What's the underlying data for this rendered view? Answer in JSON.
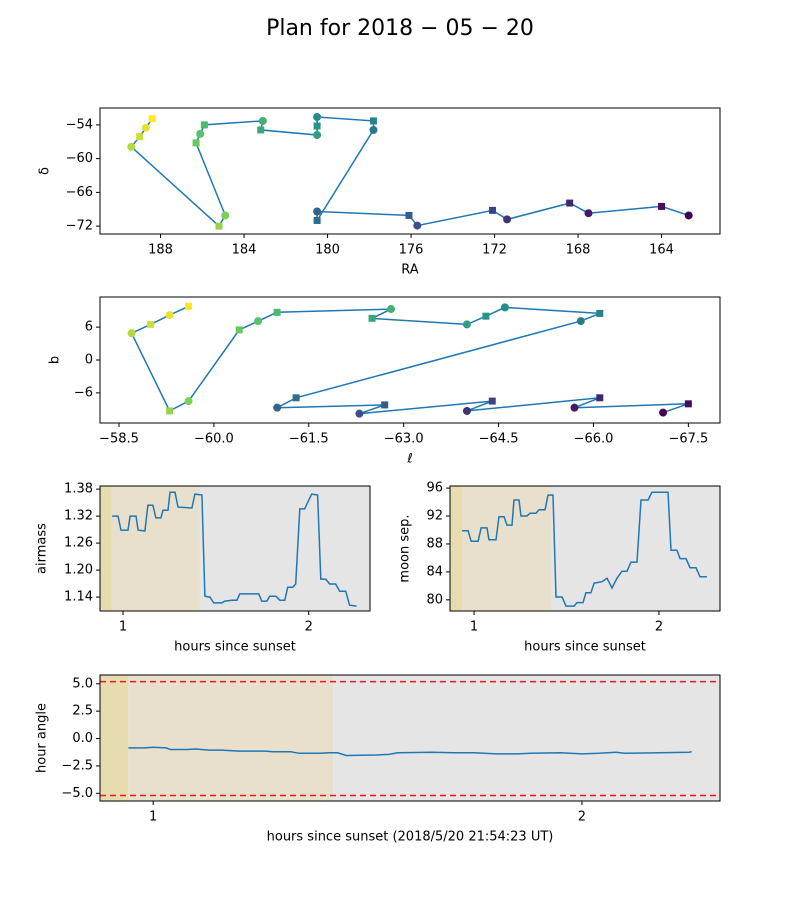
{
  "title": "Plan for 2018 − 05 − 20",
  "chart_data": [
    {
      "type": "scatter",
      "connect": true,
      "colormap": "viridis",
      "line_color": "#1f77b4",
      "xlabel": "RA",
      "ylabel": "δ",
      "x": [
        162.7,
        164.0,
        167.5,
        168.4,
        171.4,
        172.1,
        175.7,
        176.1,
        180.5,
        180.5,
        177.8,
        177.8,
        180.5,
        180.5,
        180.5,
        183.2,
        183.1,
        185.9,
        186.1,
        186.3,
        184.9,
        185.2,
        189.4,
        189.0,
        188.7,
        188.4
      ],
      "values": [
        -70.1,
        -68.5,
        -69.7,
        -67.9,
        -70.8,
        -69.2,
        -71.9,
        -70.1,
        -69.4,
        -71.0,
        -54.9,
        -53.3,
        -52.6,
        -54.2,
        -55.8,
        -54.9,
        -53.3,
        -54.0,
        -55.6,
        -57.2,
        -70.1,
        -72.0,
        -57.9,
        -56.1,
        -54.5,
        -52.9
      ],
      "xlim": [
        190.9,
        161.2
      ],
      "xticks": [
        188,
        184,
        180,
        176,
        172,
        168,
        164
      ],
      "ylim": [
        -73.4,
        -51
      ],
      "yticks": [
        {
          "value": -54,
          "label": "−54"
        },
        {
          "value": -60,
          "label": "−60"
        },
        {
          "value": -66,
          "label": "−66"
        },
        {
          "value": -72,
          "label": "−72"
        }
      ]
    },
    {
      "type": "scatter",
      "connect": true,
      "colormap": "viridis",
      "line_color": "#1f77b4",
      "xlabel": "ℓ",
      "ylabel": "b",
      "x": [
        -67.1,
        -67.5,
        -65.7,
        -66.1,
        -64.0,
        -64.4,
        -62.3,
        -62.7,
        -61.0,
        -61.3,
        -65.8,
        -66.1,
        -64.6,
        -64.3,
        -64.0,
        -62.5,
        -62.8,
        -61.0,
        -60.7,
        -60.4,
        -59.6,
        -59.3,
        -58.7,
        -59.0,
        -59.3,
        -59.6
      ],
      "values": [
        -9.6,
        -8.0,
        -8.7,
        -6.9,
        -9.3,
        -7.5,
        -9.8,
        -8.2,
        -8.7,
        -6.9,
        7.1,
        8.5,
        9.6,
        8.0,
        6.5,
        7.6,
        9.3,
        8.7,
        7.1,
        5.5,
        -7.5,
        -9.3,
        4.9,
        6.5,
        8.2,
        9.8
      ],
      "xlim": [
        -58.2,
        -68.0
      ],
      "xticks": [
        {
          "value": -58.5,
          "label": "−58.5"
        },
        {
          "value": -60,
          "label": "−60.0"
        },
        {
          "value": -61.5,
          "label": "−61.5"
        },
        {
          "value": -63,
          "label": "−63.0"
        },
        {
          "value": -64.5,
          "label": "−64.5"
        },
        {
          "value": -66,
          "label": "−66.0"
        },
        {
          "value": -67.5,
          "label": "−67.5"
        }
      ],
      "ylim": [
        -11.5,
        11.5
      ],
      "yticks": [
        6,
        0,
        {
          "value": -6,
          "label": "−6"
        }
      ]
    },
    {
      "type": "line",
      "color": "#1f77b4",
      "xlabel": "hours since sunset",
      "ylabel": "airmass",
      "spans": [
        {
          "x": [
            0.876,
            0.94
          ],
          "color": "#e6dcb0"
        },
        {
          "x": [
            0.94,
            1.414
          ],
          "color": "#e8e0cc"
        },
        {
          "x": [
            1.414,
            2.33
          ],
          "color": "#e5e5e5"
        }
      ],
      "x": [
        0.941,
        0.973,
        0.989,
        1.027,
        1.038,
        1.07,
        1.081,
        1.118,
        1.134,
        1.161,
        1.177,
        1.204,
        1.215,
        1.242,
        1.253,
        1.28,
        1.296,
        1.371,
        1.387,
        1.425,
        1.441,
        1.468,
        1.489,
        1.532,
        1.548,
        1.586,
        1.613,
        1.629,
        1.731,
        1.747,
        1.774,
        1.79,
        1.823,
        1.844,
        1.871,
        1.887,
        1.914,
        1.93,
        1.952,
        1.978,
        2.016,
        2.048,
        2.065,
        2.091,
        2.113,
        2.145,
        2.167,
        2.199,
        2.22,
        2.258
      ],
      "values": [
        1.32,
        1.32,
        1.289,
        1.289,
        1.32,
        1.32,
        1.289,
        1.287,
        1.344,
        1.344,
        1.316,
        1.316,
        1.333,
        1.333,
        1.373,
        1.373,
        1.34,
        1.338,
        1.369,
        1.367,
        1.142,
        1.14,
        1.127,
        1.127,
        1.131,
        1.133,
        1.133,
        1.147,
        1.147,
        1.131,
        1.131,
        1.142,
        1.142,
        1.133,
        1.133,
        1.162,
        1.162,
        1.169,
        1.336,
        1.336,
        1.369,
        1.367,
        1.18,
        1.18,
        1.169,
        1.169,
        1.153,
        1.153,
        1.122,
        1.12
      ],
      "xlim": [
        0.876,
        2.33
      ],
      "xticks": [
        1,
        2
      ],
      "ylim": [
        1.109,
        1.387
      ],
      "yticks": [
        1.38,
        1.32,
        1.26,
        {
          "value": 1.2,
          "label": "1.20"
        },
        1.14
      ]
    },
    {
      "type": "line",
      "color": "#1f77b4",
      "xlabel": "hours since sunset",
      "ylabel": "moon sep.",
      "spans": [
        {
          "x": [
            0.87,
            0.935
          ],
          "color": "#e6dcb0"
        },
        {
          "x": [
            0.935,
            1.416
          ],
          "color": "#e8e0cc"
        },
        {
          "x": [
            1.416,
            2.33
          ],
          "color": "#e5e5e5"
        }
      ],
      "x": [
        0.935,
        0.968,
        0.984,
        1.022,
        1.038,
        1.07,
        1.081,
        1.119,
        1.135,
        1.162,
        1.178,
        1.205,
        1.216,
        1.243,
        1.254,
        1.286,
        1.303,
        1.335,
        1.351,
        1.384,
        1.4,
        1.427,
        1.443,
        1.476,
        1.497,
        1.541,
        1.557,
        1.589,
        1.605,
        1.632,
        1.649,
        1.692,
        1.719,
        1.746,
        1.773,
        1.8,
        1.827,
        1.849,
        1.881,
        1.903,
        1.941,
        1.962,
        2.049,
        2.065,
        2.097,
        2.114,
        2.146,
        2.168,
        2.2,
        2.222,
        2.259
      ],
      "values": [
        89.9,
        89.9,
        88.4,
        88.4,
        90.3,
        90.3,
        88.6,
        88.6,
        91.9,
        91.9,
        90.7,
        90.7,
        94.3,
        94.3,
        92.0,
        92.0,
        92.4,
        92.4,
        92.9,
        92.9,
        95.0,
        95.0,
        80.4,
        80.4,
        79.1,
        79.1,
        79.6,
        79.6,
        81.0,
        81.0,
        82.4,
        82.6,
        83.1,
        81.7,
        83.1,
        84.1,
        84.1,
        85.4,
        85.4,
        94.3,
        94.3,
        95.4,
        95.4,
        87.1,
        87.1,
        85.9,
        85.9,
        84.6,
        84.6,
        83.3,
        83.3
      ],
      "xlim": [
        0.87,
        2.33
      ],
      "xticks": [
        1,
        2
      ],
      "ylim": [
        78.4,
        96.3
      ],
      "yticks": [
        96,
        92,
        88,
        84,
        80
      ]
    },
    {
      "type": "line",
      "color": "#1f77b4",
      "xlabel": "hours since sunset (2018/5/20 21:54:23 UT)",
      "ylabel": "hour angle",
      "spans": [
        {
          "x": [
            0.876,
            0.942
          ],
          "color": "#e6dcb0"
        },
        {
          "x": [
            0.942,
            1.42
          ],
          "color": "#e8e0cc"
        },
        {
          "x": [
            1.42,
            2.322
          ],
          "color": "#e5e5e5"
        }
      ],
      "hlines": [
        5.2,
        -5.2
      ],
      "hline_color": "#e8191a",
      "x": [
        0.942,
        0.98,
        1.0,
        1.03,
        1.04,
        1.08,
        1.1,
        1.13,
        1.16,
        1.2,
        1.26,
        1.28,
        1.32,
        1.34,
        1.39,
        1.41,
        1.43,
        1.45,
        1.52,
        1.55,
        1.57,
        1.65,
        1.7,
        1.75,
        1.8,
        1.85,
        1.88,
        1.95,
        2.0,
        2.04,
        2.08,
        2.1,
        2.18,
        2.25,
        2.256
      ],
      "values": [
        -0.85,
        -0.85,
        -0.8,
        -0.85,
        -1.0,
        -1.0,
        -0.95,
        -1.05,
        -1.05,
        -1.15,
        -1.15,
        -1.2,
        -1.2,
        -1.35,
        -1.35,
        -1.3,
        -1.3,
        -1.55,
        -1.5,
        -1.45,
        -1.3,
        -1.25,
        -1.3,
        -1.3,
        -1.4,
        -1.4,
        -1.35,
        -1.3,
        -1.4,
        -1.35,
        -1.25,
        -1.35,
        -1.3,
        -1.25,
        -1.2
      ],
      "xlim": [
        0.876,
        2.322
      ],
      "xticks": [
        1,
        2
      ],
      "ylim": [
        -5.7,
        5.8
      ],
      "yticks": [
        {
          "value": 5,
          "label": "5.0"
        },
        2.5,
        {
          "value": 0,
          "label": "0.0"
        },
        {
          "value": -2.5,
          "label": "−2.5"
        },
        {
          "value": -5,
          "label": "−5.0"
        }
      ]
    }
  ]
}
